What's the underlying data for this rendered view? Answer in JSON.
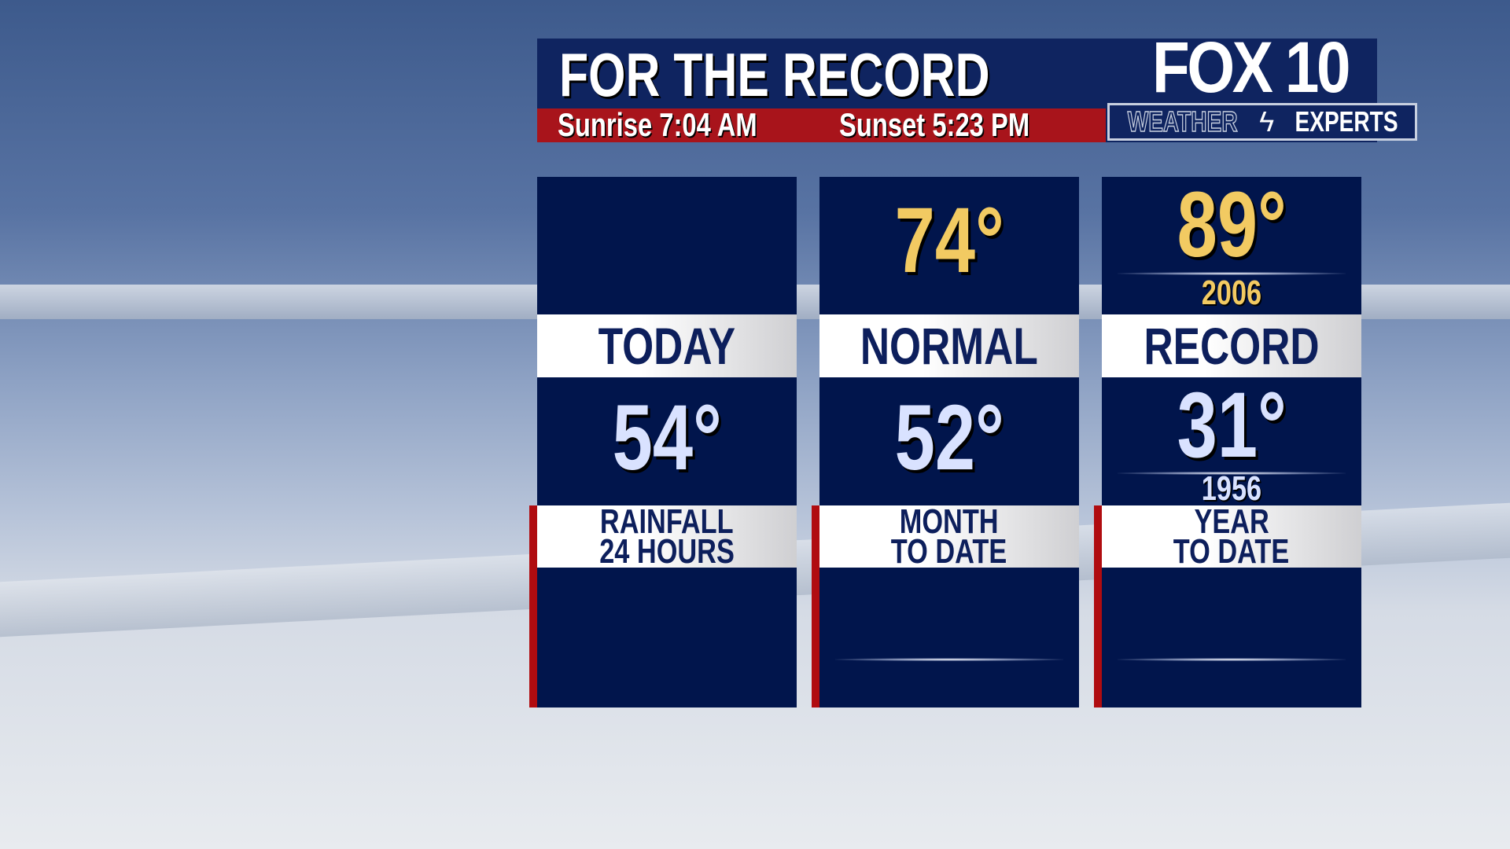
{
  "header": {
    "title": "FOR THE RECORD",
    "sunrise": "Sunrise 7:04 AM",
    "sunset": "Sunset 5:23 PM",
    "logo": {
      "brand": "FOX 10",
      "weather": "WEATHER",
      "experts": "EXPERTS"
    }
  },
  "columns": [
    {
      "label": "TODAY",
      "high": "",
      "low": "54°",
      "low_year": "",
      "rain_label_1": "RAINFALL",
      "rain_label_2": "24 HOURS",
      "rain_value": ""
    },
    {
      "label": "NORMAL",
      "high": "74°",
      "low": "52°",
      "low_year": "",
      "rain_label_1": "MONTH",
      "rain_label_2": "TO DATE",
      "rain_value": ""
    },
    {
      "label": "RECORD",
      "high": "89°",
      "high_year": "2006",
      "low": "31°",
      "low_year": "1956",
      "rain_label_1": "YEAR",
      "rain_label_2": "TO DATE",
      "rain_value": ""
    }
  ],
  "colors": {
    "panel": "#01154c",
    "header": "#0f2460",
    "red": "#a8141b",
    "high": "#f2ca62",
    "low": "#d9e2ff"
  }
}
